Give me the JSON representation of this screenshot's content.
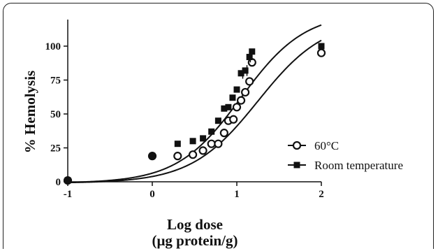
{
  "chart_data": {
    "type": "scatter",
    "title": "",
    "xlabel_line1": "Log dose",
    "xlabel_line2": "(μg protein/g)",
    "ylabel": "% Hemolysis",
    "xlim": [
      -1,
      2
    ],
    "ylim": [
      0,
      110
    ],
    "xticks": [
      -1,
      0,
      1,
      2
    ],
    "xtick_labels": [
      "-1",
      "0",
      "1",
      "2"
    ],
    "yticks": [
      0,
      25,
      50,
      75,
      100
    ],
    "ytick_labels": [
      "0",
      "25",
      "50",
      "75",
      "100"
    ],
    "grid": false,
    "legend_position": "right",
    "series": [
      {
        "name": "60°C",
        "marker": "open-circle",
        "color": "#111111",
        "x": [
          -1.0,
          0.0,
          0.3,
          0.48,
          0.6,
          0.7,
          0.78,
          0.85,
          0.9,
          0.96,
          1.0,
          1.05,
          1.1,
          1.15,
          1.18,
          2.0
        ],
        "y": [
          1,
          19,
          19,
          20,
          23,
          28,
          28,
          36,
          45,
          46,
          55,
          60,
          66,
          74,
          88,
          95
        ]
      },
      {
        "name": "Room temperature",
        "marker": "filled-square",
        "color": "#111111",
        "x": [
          -1.0,
          0.0,
          0.3,
          0.48,
          0.6,
          0.7,
          0.78,
          0.85,
          0.9,
          0.95,
          1.0,
          1.05,
          1.1,
          1.15,
          1.18,
          2.0
        ],
        "y": [
          1,
          19,
          28,
          30,
          32,
          37,
          45,
          54,
          55,
          62,
          68,
          80,
          82,
          92,
          96,
          100
        ]
      }
    ],
    "fit_curves": [
      {
        "series": "Room temperature",
        "bottom": -1,
        "top": 125,
        "logEC50": 1.05,
        "hill": 1.15
      },
      {
        "series": "60°C",
        "bottom": -1,
        "top": 120,
        "logEC50": 1.25,
        "hill": 1.1
      }
    ]
  }
}
